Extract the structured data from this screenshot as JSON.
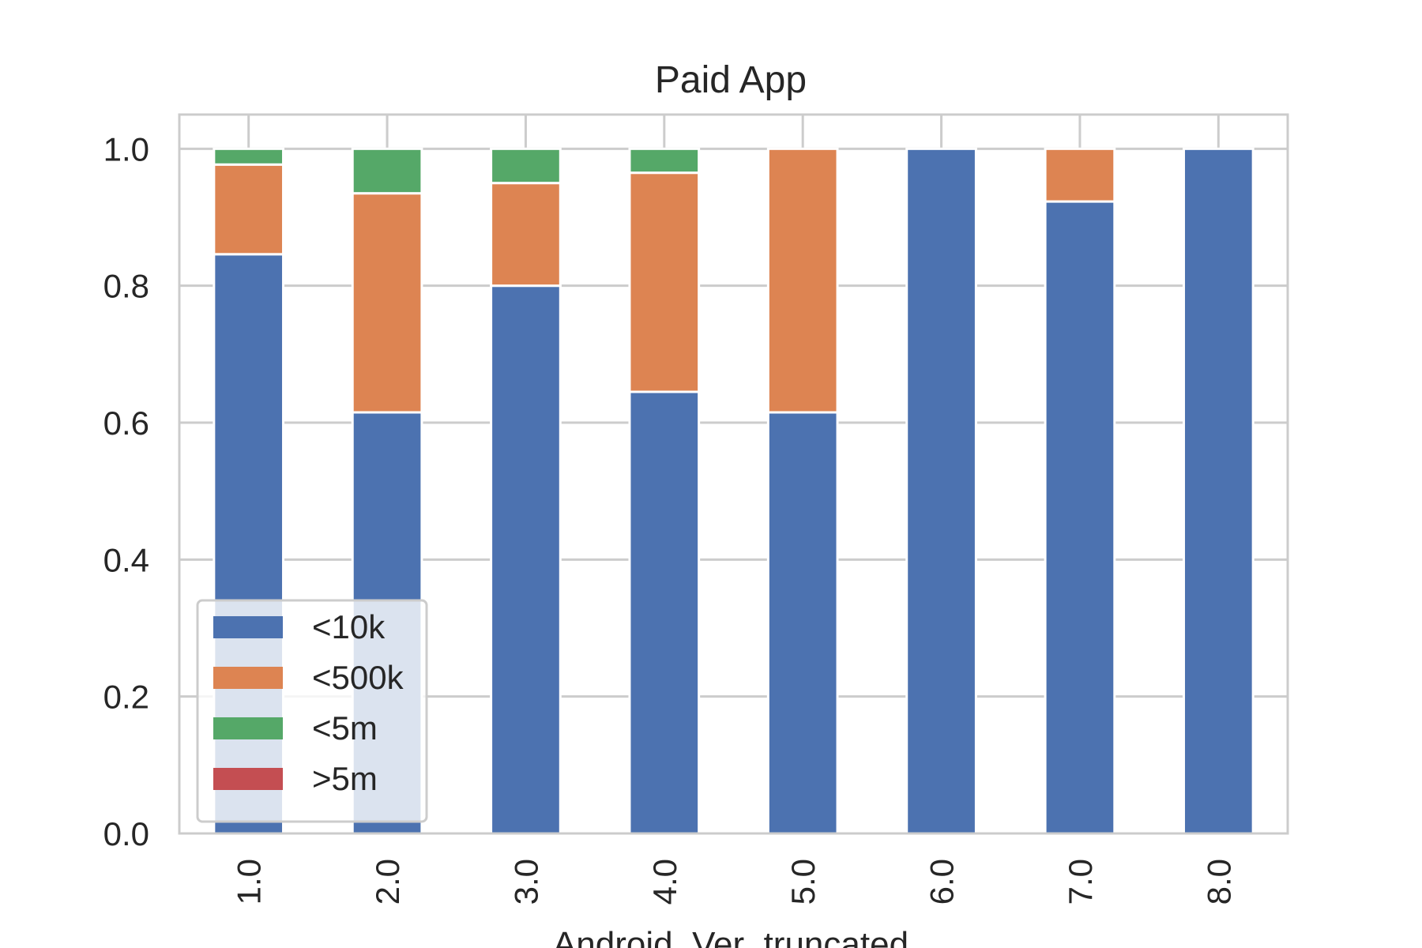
{
  "chart_data": {
    "type": "bar",
    "stacked": true,
    "title": "Paid App",
    "xlabel": "Android_Ver_truncated",
    "ylabel": "",
    "categories": [
      "1.0",
      "2.0",
      "3.0",
      "4.0",
      "5.0",
      "6.0",
      "7.0",
      "8.0"
    ],
    "ylim": [
      0,
      1.05
    ],
    "yticks": [
      "0.0",
      "0.2",
      "0.4",
      "0.6",
      "0.8",
      "1.0"
    ],
    "grid": true,
    "legend_position": "lower-left",
    "series": [
      {
        "name": "<10k",
        "color": "#4c72b0",
        "values": [
          0.846,
          0.615,
          0.8,
          0.645,
          0.615,
          1.0,
          0.923,
          1.0
        ]
      },
      {
        "name": "<500k",
        "color": "#dd8452",
        "values": [
          0.131,
          0.32,
          0.15,
          0.32,
          0.385,
          0.0,
          0.077,
          0.0
        ]
      },
      {
        "name": "<5m",
        "color": "#55a868",
        "values": [
          0.023,
          0.065,
          0.05,
          0.035,
          0.0,
          0.0,
          0.0,
          0.0
        ]
      },
      {
        "name": ">5m",
        "color": "#c44e52",
        "values": [
          0,
          0,
          0,
          0,
          0,
          0,
          0,
          0
        ]
      }
    ]
  }
}
